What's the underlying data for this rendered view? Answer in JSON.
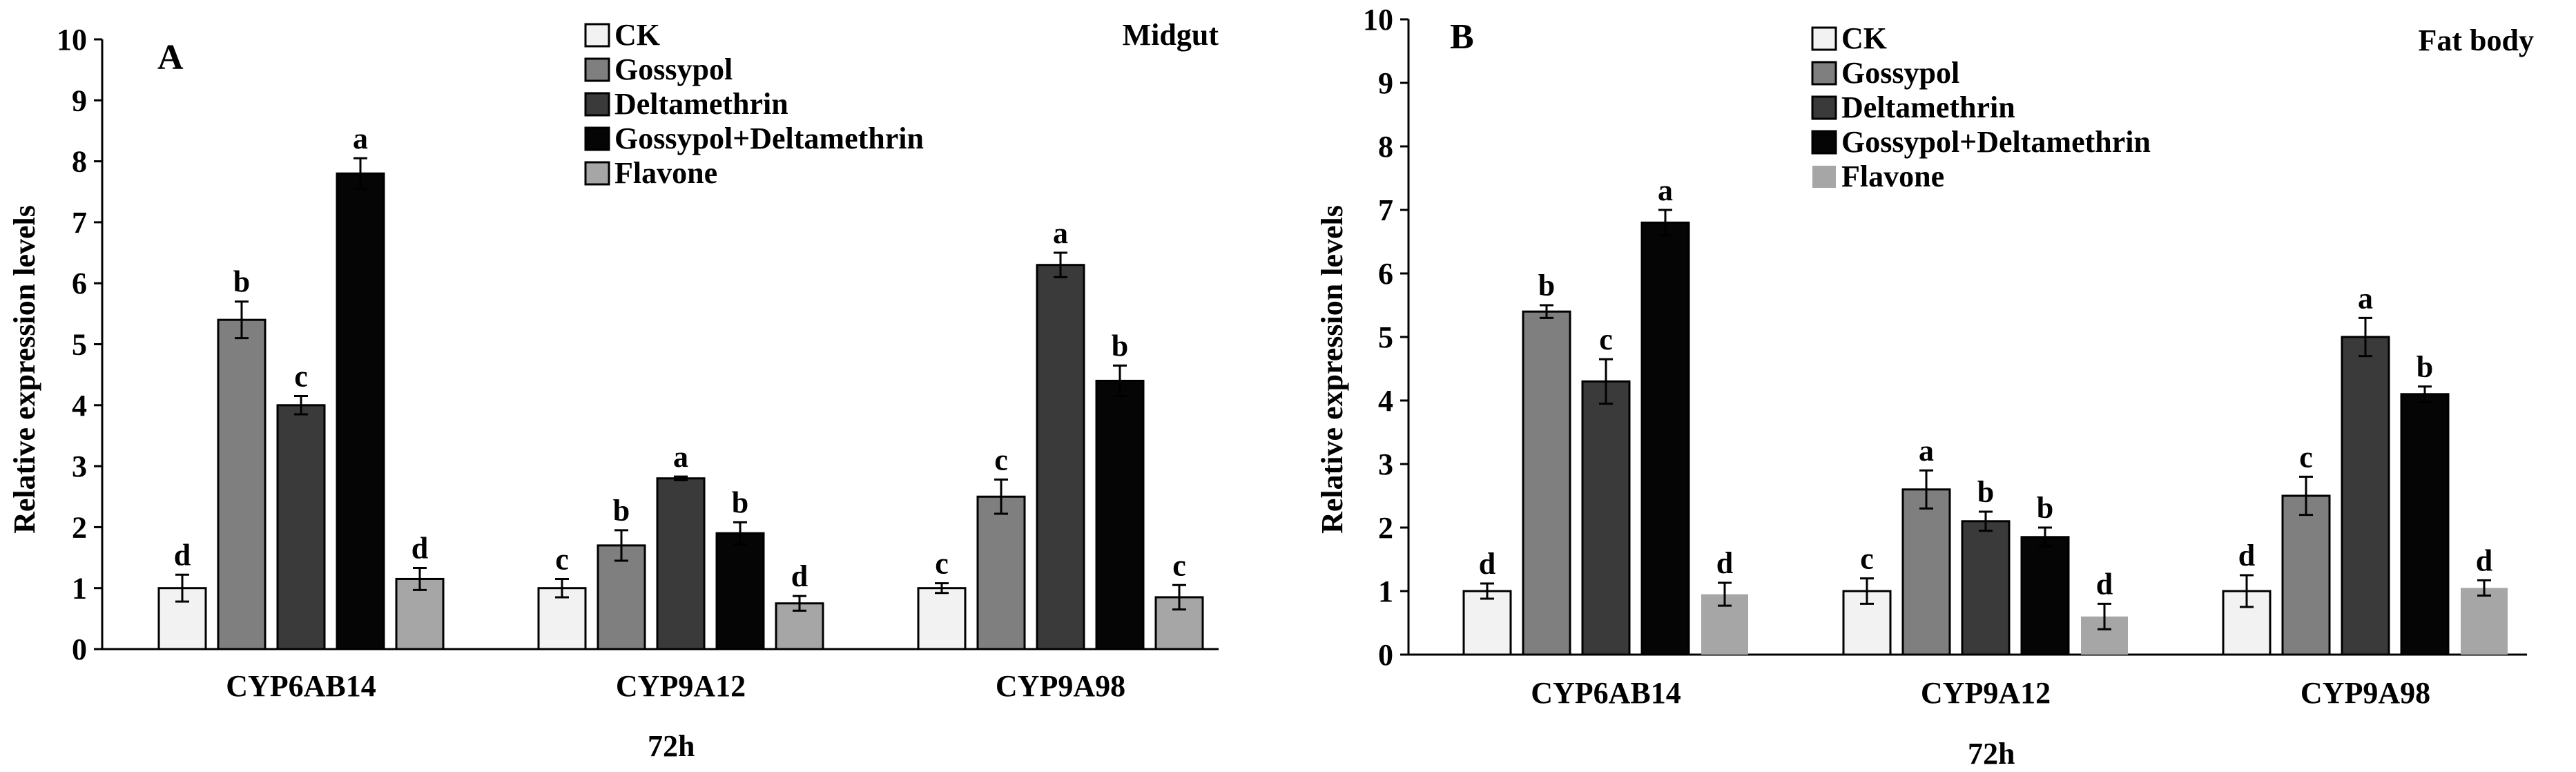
{
  "figure": {
    "time_label": "72h"
  },
  "chart_data": [
    {
      "type": "bar",
      "panel": "A",
      "tissue": "Midgut",
      "ylabel": "Relative expression levels",
      "ylim": [
        0,
        10
      ],
      "yticks": [
        "0",
        "1",
        "2",
        "3",
        "4",
        "5",
        "6",
        "7",
        "8",
        "9",
        "10"
      ],
      "categories": [
        "CYP6AB14",
        "CYP9A12",
        "CYP9A98"
      ],
      "series": [
        {
          "name": "CK",
          "color": "#f2f2f2",
          "values": [
            1.0,
            1.0,
            1.0
          ],
          "errors": [
            0.22,
            0.15,
            0.08
          ],
          "letters": [
            "d",
            "c",
            "c"
          ]
        },
        {
          "name": "Gossypol",
          "color": "#7f7f7f",
          "values": [
            5.4,
            1.7,
            2.5
          ],
          "errors": [
            0.3,
            0.25,
            0.28
          ],
          "letters": [
            "b",
            "b",
            "c"
          ]
        },
        {
          "name": "Deltamethrin",
          "color": "#3a3a3a",
          "values": [
            4.0,
            2.8,
            6.3
          ],
          "errors": [
            0.15,
            0.03,
            0.2
          ],
          "letters": [
            "c",
            "a",
            "a"
          ]
        },
        {
          "name": "Gossypol+Deltamethrin",
          "color": "#050505",
          "values": [
            7.8,
            1.9,
            4.4
          ],
          "errors": [
            0.25,
            0.18,
            0.25
          ],
          "letters": [
            "a",
            "b",
            "b"
          ]
        },
        {
          "name": "Flavone",
          "color": "#a6a6a6",
          "values": [
            1.15,
            0.75,
            0.85
          ],
          "errors": [
            0.18,
            0.12,
            0.2
          ],
          "letters": [
            "d",
            "d",
            "c"
          ]
        }
      ]
    },
    {
      "type": "bar",
      "panel": "B",
      "tissue": "Fat body",
      "ylabel": "Relative expression levels",
      "ylim": [
        0,
        10
      ],
      "yticks": [
        "0",
        "1",
        "2",
        "3",
        "4",
        "5",
        "6",
        "7",
        "8",
        "9",
        "10"
      ],
      "categories": [
        "CYP6AB14",
        "CYP9A12",
        "CYP9A98"
      ],
      "series": [
        {
          "name": "CK",
          "color": "#f2f2f2",
          "values": [
            1.0,
            1.0,
            1.0
          ],
          "errors": [
            0.12,
            0.2,
            0.25
          ],
          "letters": [
            "d",
            "c",
            "d"
          ]
        },
        {
          "name": "Gossypol",
          "color": "#7f7f7f",
          "values": [
            5.4,
            2.6,
            2.5
          ],
          "errors": [
            0.1,
            0.3,
            0.3
          ],
          "letters": [
            "b",
            "a",
            "c"
          ]
        },
        {
          "name": "Deltamethrin",
          "color": "#3a3a3a",
          "values": [
            4.3,
            2.1,
            5.0
          ],
          "errors": [
            0.35,
            0.15,
            0.3
          ],
          "letters": [
            "c",
            "b",
            "a"
          ]
        },
        {
          "name": "Gossypol+Deltamethrin",
          "color": "#050505",
          "values": [
            6.8,
            1.85,
            4.1
          ],
          "errors": [
            0.2,
            0.15,
            0.12
          ],
          "letters": [
            "a",
            "b",
            "b"
          ]
        },
        {
          "name": "Flavone",
          "color": "#a6a6a6",
          "values": [
            0.95,
            0.6,
            1.05
          ],
          "errors": [
            0.18,
            0.2,
            0.12
          ],
          "letters": [
            "d",
            "d",
            "d"
          ]
        }
      ]
    }
  ]
}
